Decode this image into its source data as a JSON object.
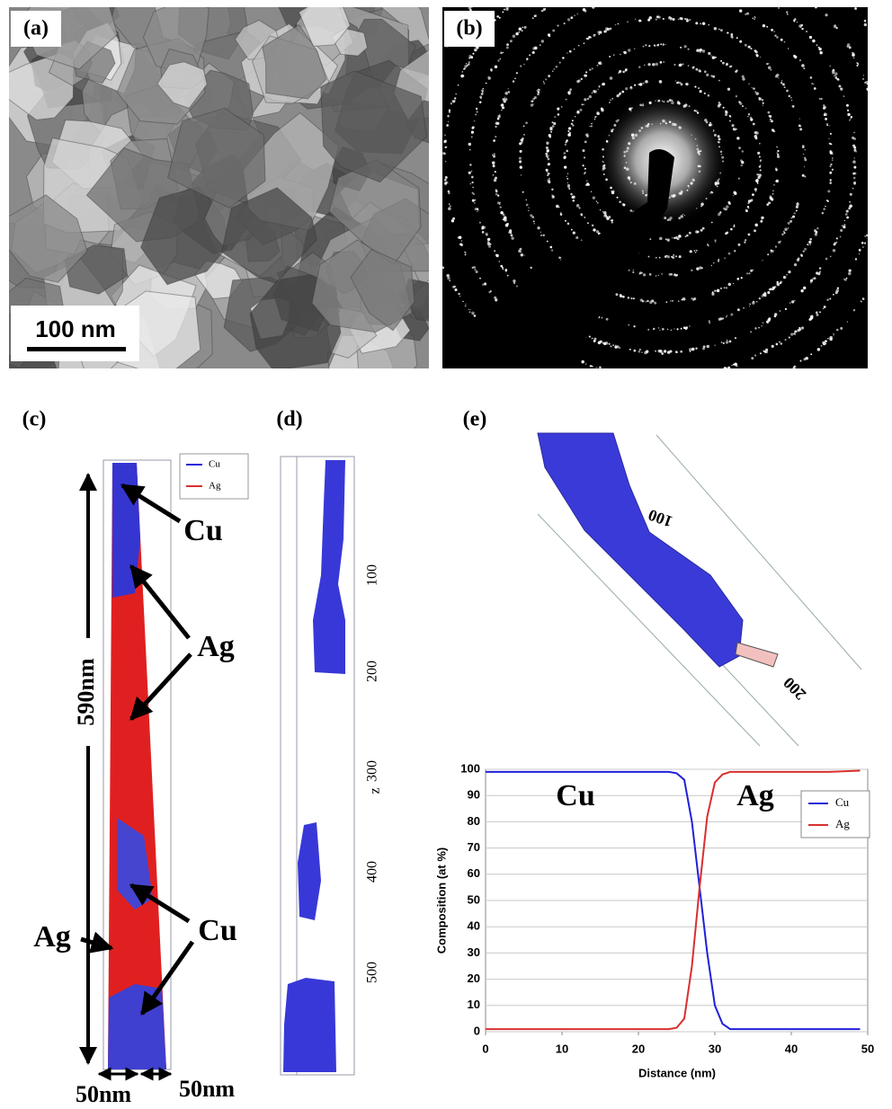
{
  "panels": {
    "a": {
      "label": "(a)",
      "scale_bar": "100 nm"
    },
    "b": {
      "label": "(b)"
    },
    "c": {
      "label": "(c)",
      "legend": [
        "Cu",
        "Ag"
      ],
      "annotations": [
        "Cu",
        "Ag",
        "Ag",
        "Cu"
      ],
      "length": "590nm",
      "widths": [
        "50nm",
        "50nm"
      ]
    },
    "d": {
      "label": "(d)",
      "axis_label": "z",
      "ticks": [
        "100",
        "200",
        "300",
        "400",
        "500"
      ]
    },
    "e": {
      "label": "(e)",
      "axis_labels": [
        "100",
        "200"
      ]
    }
  },
  "chart_data": {
    "type": "line",
    "xlabel": "Distance (nm)",
    "ylabel": "Composition (at %)",
    "x": [
      0,
      5,
      10,
      15,
      20,
      24,
      25,
      26,
      27,
      28,
      29,
      30,
      31,
      32,
      35,
      40,
      45,
      49
    ],
    "series": [
      {
        "name": "Cu",
        "color": "#2020d8",
        "values": [
          99,
          99,
          99,
          99,
          99,
          99,
          98.5,
          96,
          80,
          55,
          30,
          10,
          3,
          1,
          1,
          1,
          1,
          1
        ]
      },
      {
        "name": "Ag",
        "color": "#d83030",
        "values": [
          1,
          1,
          1,
          1,
          1,
          1,
          1.5,
          5,
          25,
          55,
          82,
          95,
          98,
          99,
          99,
          99,
          99,
          99.5
        ]
      }
    ],
    "xlim": [
      0,
      50
    ],
    "ylim": [
      0,
      100
    ],
    "xticks": [
      0,
      10,
      20,
      30,
      40,
      50
    ],
    "yticks": [
      0,
      10,
      20,
      30,
      40,
      50,
      60,
      70,
      80,
      90,
      100
    ],
    "grid": true,
    "legend": "upper right",
    "annotations": [
      "Cu",
      "Ag"
    ]
  }
}
